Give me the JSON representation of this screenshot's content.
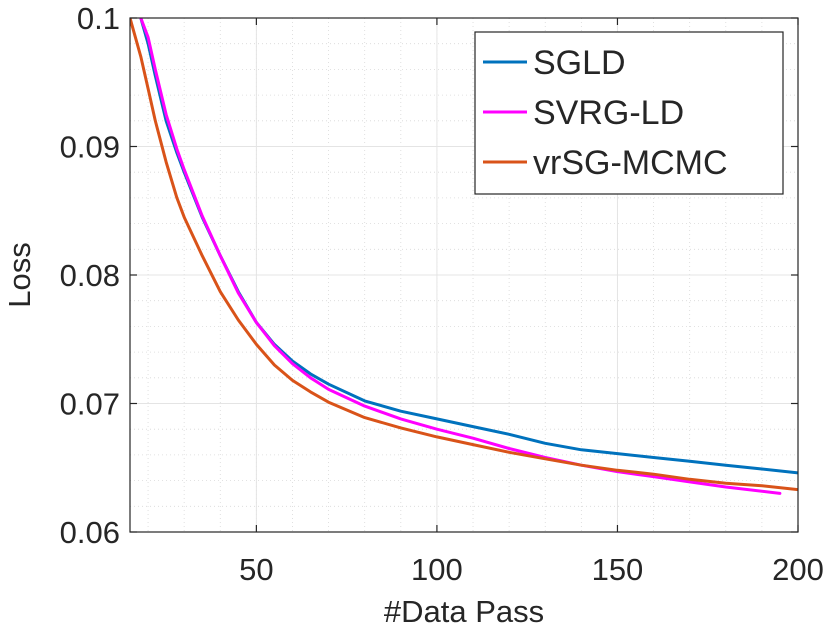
{
  "chart_data": {
    "type": "line",
    "title": "",
    "xlabel": "#Data Pass",
    "ylabel": "Loss",
    "xlim": [
      15,
      200
    ],
    "ylim": [
      0.06,
      0.1
    ],
    "xticks": [
      50,
      100,
      150,
      200
    ],
    "xtick_labels": [
      "50",
      "100",
      "150",
      "200"
    ],
    "yticks": [
      0.06,
      0.07,
      0.08,
      0.09,
      0.1
    ],
    "ytick_labels": [
      "0.06",
      "0.07",
      "0.08",
      "0.09",
      "0.1"
    ],
    "grid": true,
    "minor_grid": true,
    "legend_position": "top-right",
    "series": [
      {
        "name": "SGLD",
        "color": "#0072BD",
        "x": [
          18,
          20,
          22,
          25,
          28,
          30,
          35,
          40,
          45,
          50,
          55,
          60,
          65,
          70,
          80,
          90,
          100,
          110,
          120,
          130,
          140,
          150,
          160,
          170,
          180,
          190,
          200
        ],
        "y": [
          0.1,
          0.098,
          0.0955,
          0.092,
          0.0895,
          0.088,
          0.0845,
          0.0815,
          0.0787,
          0.0763,
          0.0746,
          0.0733,
          0.0723,
          0.0715,
          0.0702,
          0.0694,
          0.0688,
          0.0682,
          0.0676,
          0.0669,
          0.0664,
          0.0661,
          0.0658,
          0.0655,
          0.0652,
          0.0649,
          0.0646
        ]
      },
      {
        "name": "SVRG-LD",
        "color": "#FF00FF",
        "x": [
          18,
          20,
          22,
          25,
          28,
          30,
          35,
          40,
          45,
          50,
          55,
          60,
          65,
          70,
          80,
          90,
          100,
          110,
          120,
          130,
          140,
          150,
          160,
          170,
          180,
          195
        ],
        "y": [
          0.1,
          0.0985,
          0.096,
          0.0925,
          0.0898,
          0.0882,
          0.0846,
          0.0815,
          0.0786,
          0.0763,
          0.0745,
          0.0731,
          0.072,
          0.0711,
          0.0698,
          0.0688,
          0.068,
          0.0673,
          0.0665,
          0.0658,
          0.0652,
          0.0647,
          0.0643,
          0.0639,
          0.0635,
          0.063
        ]
      },
      {
        "name": "vrSG-MCMC",
        "color": "#D95319",
        "x": [
          15,
          18,
          20,
          22,
          25,
          28,
          30,
          35,
          40,
          45,
          50,
          55,
          60,
          65,
          70,
          80,
          90,
          100,
          110,
          120,
          130,
          140,
          150,
          160,
          170,
          180,
          190,
          200
        ],
        "y": [
          0.1,
          0.097,
          0.0945,
          0.092,
          0.0888,
          0.086,
          0.0845,
          0.0815,
          0.0787,
          0.0765,
          0.0746,
          0.073,
          0.0718,
          0.0709,
          0.0701,
          0.0689,
          0.0681,
          0.0674,
          0.0668,
          0.0662,
          0.0657,
          0.0652,
          0.0648,
          0.0645,
          0.0641,
          0.0638,
          0.0636,
          0.0633
        ]
      }
    ]
  }
}
